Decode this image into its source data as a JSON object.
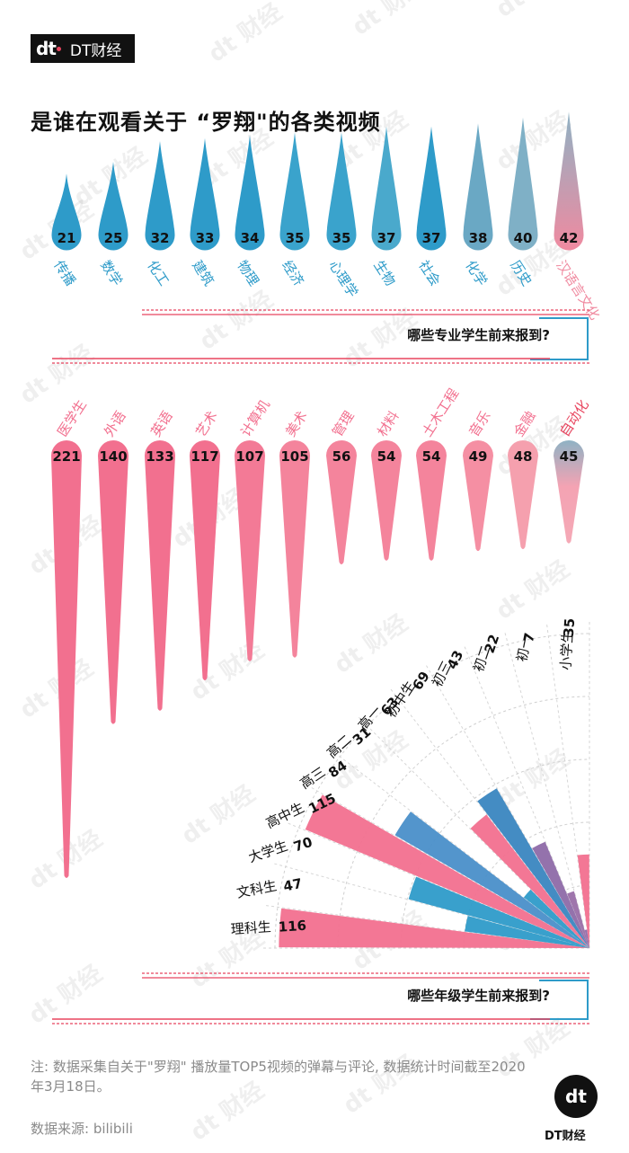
{
  "brand": {
    "logo_text": "dt",
    "name": "DT财经"
  },
  "title": "是谁在观看关于 “罗翔\"的各类视频",
  "note": "注: 数据采集自关于\"罗翔\" 播放量TOP5视频的弹幕与评论, 数据统计时间截至2020年3月18日。",
  "source": "数据来源: bilibili",
  "footer_logo": {
    "logo_text": "dt",
    "name": "DT财经"
  },
  "watermark_text": "dt 财经",
  "colors": {
    "blue": "#2e9bc9",
    "pink": "#f2708f",
    "purple": "#8e6aa8",
    "grey_blue": "#8fb2c4"
  },
  "chart_data": [
    {
      "type": "bar",
      "categories": [
        "传播",
        "数学",
        "化工",
        "建筑",
        "物理",
        "经济",
        "心理学",
        "生物",
        "社会",
        "化学",
        "历史",
        "汉语言文化"
      ],
      "values": [
        21,
        25,
        32,
        33,
        34,
        35,
        35,
        37,
        37,
        38,
        40,
        42
      ],
      "series_colors": [
        "#2e9bc9",
        "#2e9bc9",
        "#2e9bc9",
        "#2e9bc9",
        "#2e9bc9",
        "#3aa3cc",
        "#3aa3cc",
        "#4aa9cc",
        "#2e9bc9",
        "#6aa8c4",
        "#7fb0c6",
        "#f08aa0"
      ],
      "caption": "哪些专业学生前来报到?"
    },
    {
      "type": "bar",
      "categories": [
        "医学生",
        "外语",
        "英语",
        "艺术",
        "计算机",
        "美术",
        "管理",
        "材料",
        "土木工程",
        "音乐",
        "金融",
        "自动化"
      ],
      "values": [
        221,
        140,
        133,
        117,
        107,
        105,
        56,
        54,
        54,
        49,
        48,
        45
      ],
      "series_colors": [
        "#f2708f",
        "#f2708f",
        "#f2708f",
        "#f2708f",
        "#f37a96",
        "#f4849c",
        "#f4849c",
        "#f4849c",
        "#f4849c",
        "#f58fa3",
        "#f5a0ae",
        "#8fb2c4"
      ]
    },
    {
      "type": "bar",
      "categories": [
        "理科生",
        "文科生",
        "大学生",
        "高中生",
        "高三",
        "高二",
        "高一",
        "初中生",
        "初三",
        "初二",
        "初一",
        "小学生"
      ],
      "values": [
        116,
        47,
        70,
        115,
        84,
        31,
        63,
        69,
        43,
        22,
        7,
        35
      ],
      "series_colors": [
        "#f2708f",
        "#2e9bc9",
        "#2e9bc9",
        "#f2708f",
        "#4a8fc9",
        "#2e9bc9",
        "#f2708f",
        "#3a86c0",
        "#8e6aa8",
        "#9a6fa8",
        "#8e6aa8",
        "#f2708f"
      ],
      "caption": "哪些年级学生前来报到?"
    }
  ]
}
